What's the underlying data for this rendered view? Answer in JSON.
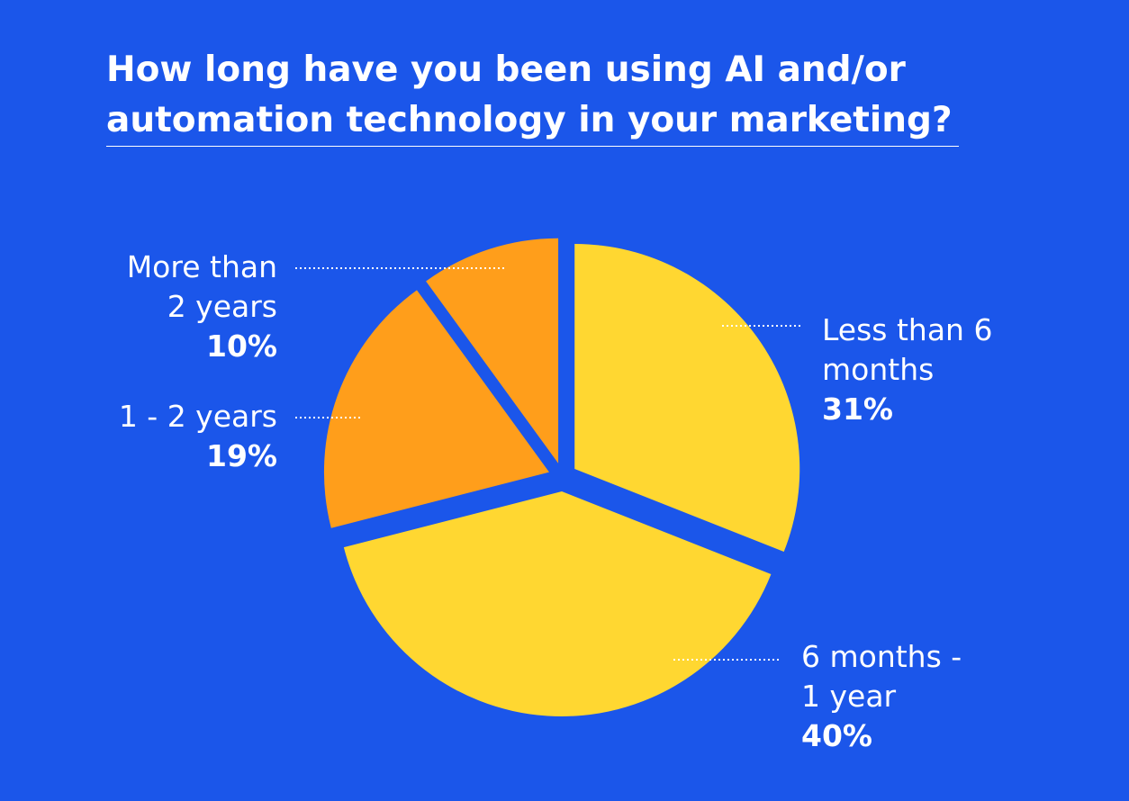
{
  "chart_data": {
    "type": "pie",
    "title": "How long have you been using AI and/or automation technology in your marketing?",
    "categories": [
      "Less than 6 months",
      "6 months - 1 year",
      "1 - 2 years",
      "More than 2 years"
    ],
    "values": [
      31,
      40,
      19,
      10
    ],
    "value_labels": [
      "31%",
      "40%",
      "19%",
      "10%"
    ],
    "colors": [
      "#ffd731",
      "#ffd731",
      "#ff9e1b",
      "#ff9e1b"
    ],
    "background": "#1b56ea"
  }
}
